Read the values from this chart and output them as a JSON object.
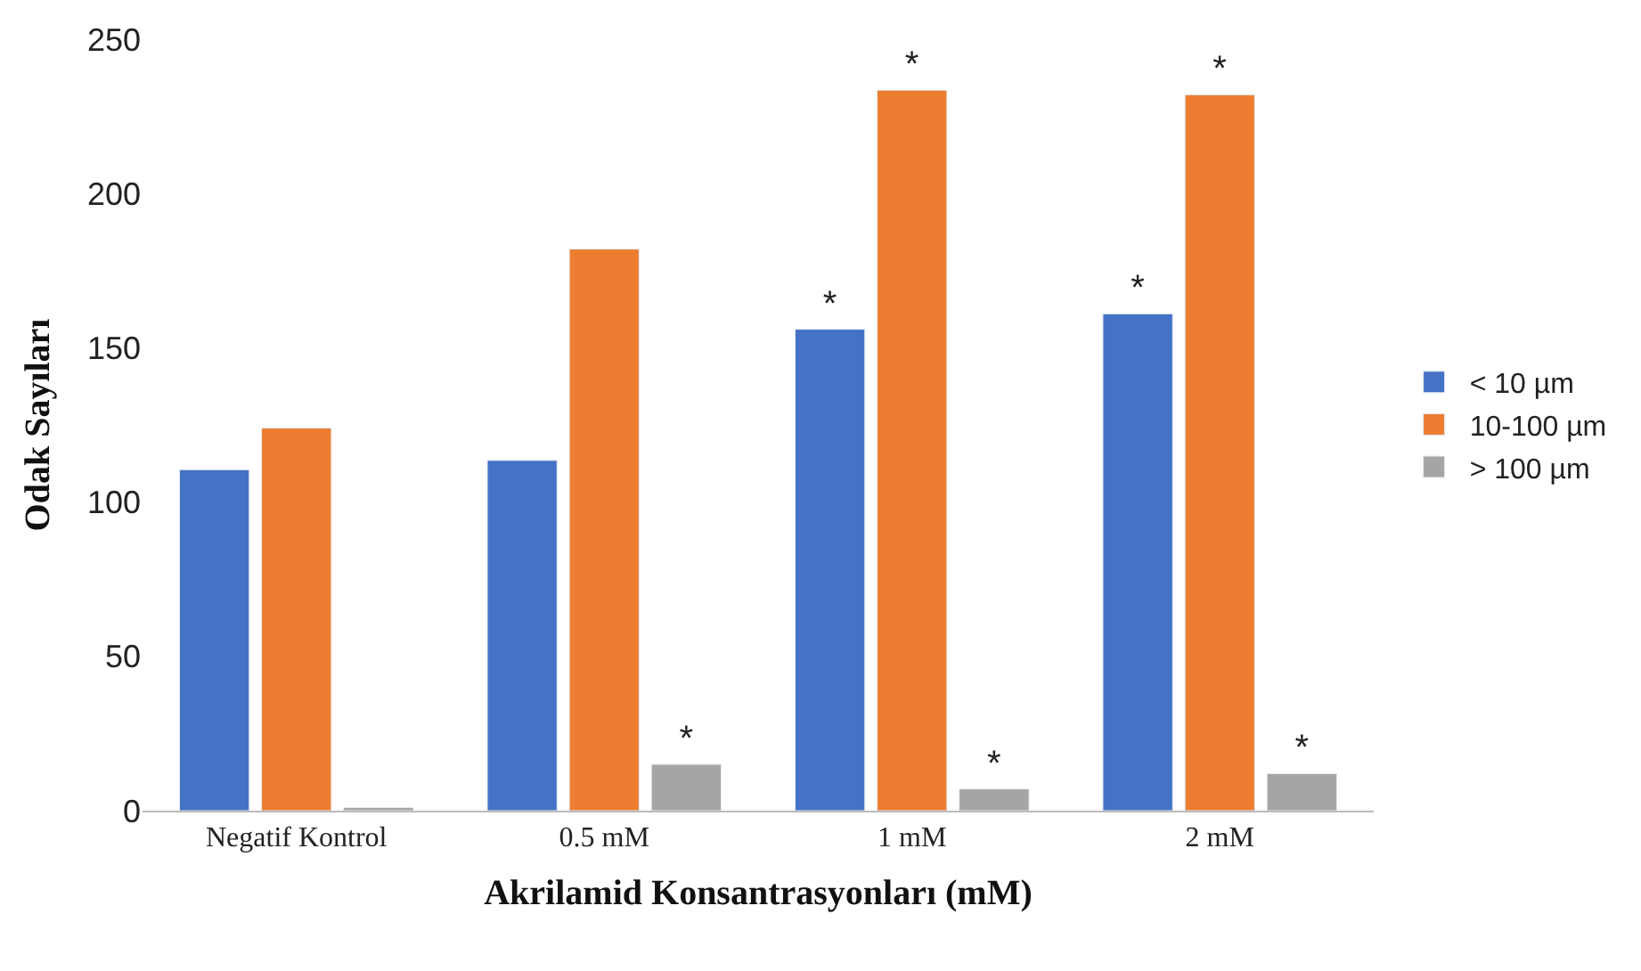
{
  "chart_data": {
    "type": "bar",
    "xlabel": "Akrilamid Konsantrasyonları (mM)",
    "ylabel": "Odak Sayıları",
    "categories": [
      "Negatif Kontrol",
      "0.5 mM",
      "1 mM",
      "2 mM"
    ],
    "series": [
      {
        "name": "< 10 µm",
        "color": "#4472c4",
        "values": [
          110.5,
          113.5,
          156,
          161
        ],
        "value_labels": [
          null,
          null,
          "*",
          "*"
        ]
      },
      {
        "name": "10-100 µm",
        "color": "#ed7d31",
        "values": [
          124,
          182,
          233.5,
          232
        ],
        "value_labels": [
          null,
          null,
          "*",
          "*"
        ]
      },
      {
        "name": "> 100 µm",
        "color": "#a5a5a5",
        "values": [
          1,
          15,
          7,
          12
        ],
        "value_labels": [
          null,
          "*",
          "*",
          "*"
        ]
      }
    ],
    "ylim": [
      0,
      250
    ],
    "yticks": [
      0,
      50,
      100,
      150,
      200,
      250
    ],
    "legend": "right"
  }
}
